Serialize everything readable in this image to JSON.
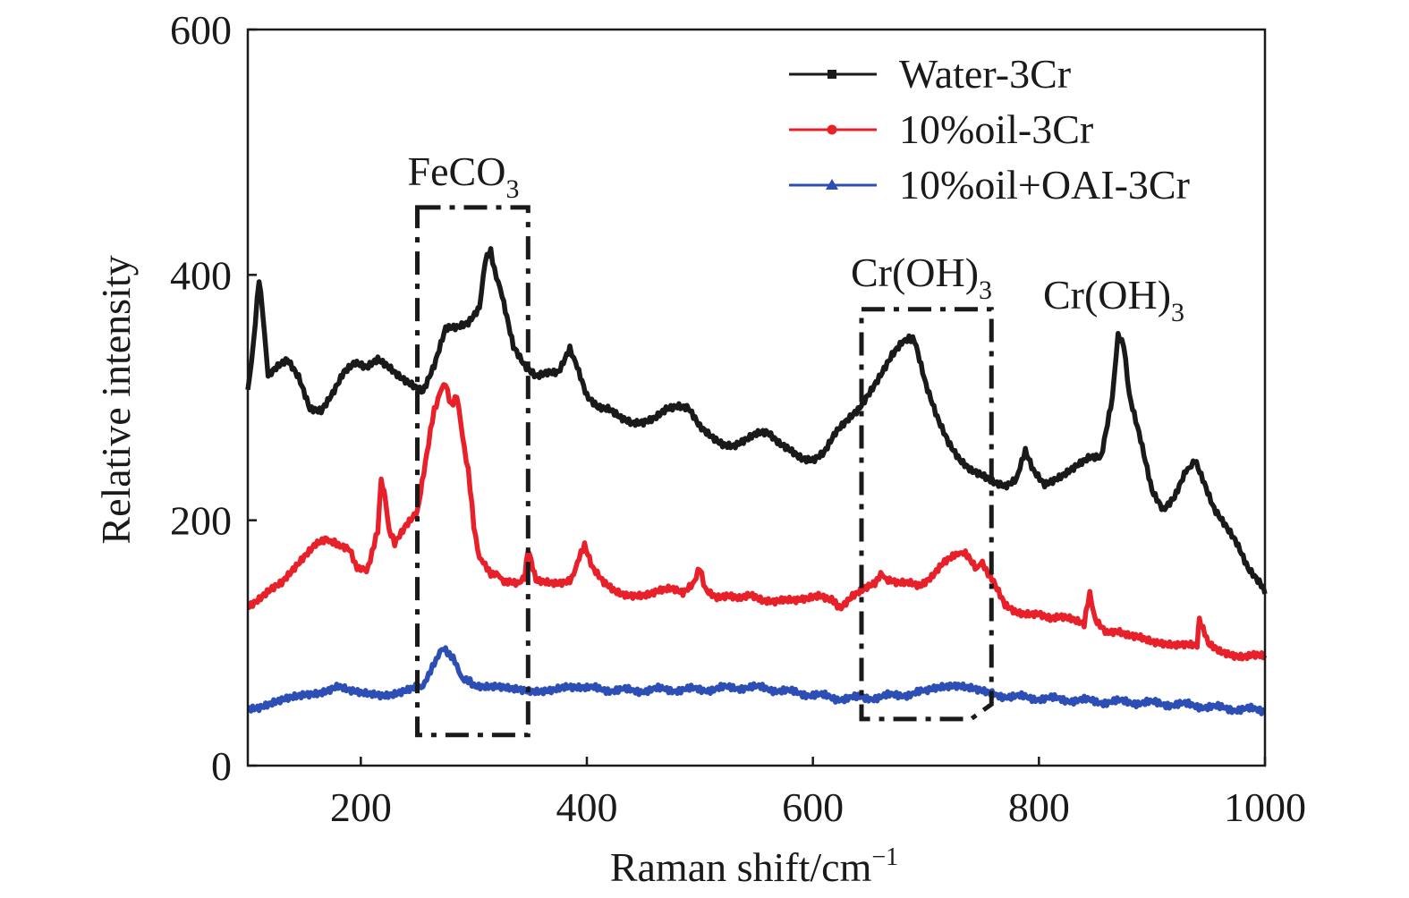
{
  "chart_data": {
    "type": "line",
    "xlabel": "Raman shift/cm",
    "xlabel_sup": "−1",
    "ylabel": "Relative intensity",
    "xlim": [
      100,
      1000
    ],
    "ylim": [
      0,
      600
    ],
    "xticks": [
      200,
      400,
      600,
      800,
      1000
    ],
    "yticks": [
      0,
      200,
      400,
      600
    ],
    "legend_position": "top-right",
    "series": [
      {
        "name": "Water-3Cr",
        "color": "#1a1a1a",
        "marker": "square",
        "x": [
          100,
          105,
          110,
          113,
          118,
          125,
          135,
          145,
          155,
          165,
          175,
          185,
          195,
          205,
          215,
          225,
          235,
          245,
          255,
          265,
          275,
          285,
          295,
          305,
          310,
          315,
          320,
          325,
          335,
          345,
          355,
          365,
          375,
          385,
          390,
          400,
          410,
          420,
          430,
          440,
          450,
          460,
          470,
          480,
          490,
          500,
          510,
          520,
          530,
          540,
          550,
          560,
          570,
          580,
          590,
          600,
          610,
          620,
          630,
          640,
          650,
          660,
          670,
          680,
          685,
          690,
          700,
          710,
          720,
          730,
          740,
          750,
          760,
          770,
          780,
          788,
          795,
          805,
          815,
          825,
          835,
          845,
          855,
          865,
          870,
          875,
          880,
          890,
          900,
          910,
          920,
          930,
          938,
          945,
          955,
          965,
          975,
          985,
          995,
          1000
        ],
        "y": [
          305,
          345,
          395,
          370,
          320,
          325,
          330,
          315,
          290,
          290,
          305,
          322,
          328,
          323,
          330,
          325,
          318,
          312,
          305,
          325,
          355,
          357,
          362,
          375,
          410,
          420,
          398,
          382,
          340,
          325,
          318,
          322,
          322,
          340,
          330,
          303,
          293,
          290,
          282,
          278,
          280,
          285,
          292,
          293,
          290,
          275,
          268,
          263,
          262,
          266,
          270,
          270,
          262,
          258,
          252,
          250,
          255,
          270,
          280,
          290,
          305,
          320,
          335,
          345,
          350,
          345,
          310,
          285,
          265,
          250,
          240,
          235,
          230,
          228,
          235,
          255,
          240,
          230,
          235,
          240,
          245,
          250,
          250,
          300,
          350,
          345,
          300,
          265,
          225,
          210,
          220,
          240,
          250,
          235,
          210,
          195,
          180,
          160,
          150,
          140
        ]
      },
      {
        "name": "10%oil-3Cr",
        "color": "#e8202a",
        "marker": "circle",
        "x": [
          100,
          110,
          120,
          130,
          140,
          150,
          160,
          170,
          175,
          180,
          190,
          195,
          200,
          205,
          210,
          215,
          218,
          222,
          225,
          230,
          240,
          250,
          260,
          265,
          270,
          275,
          280,
          285,
          290,
          295,
          300,
          305,
          310,
          315,
          320,
          325,
          330,
          340,
          345,
          348,
          355,
          365,
          375,
          385,
          390,
          398,
          405,
          415,
          425,
          435,
          445,
          455,
          465,
          475,
          485,
          495,
          500,
          505,
          515,
          525,
          535,
          545,
          555,
          565,
          575,
          585,
          595,
          605,
          615,
          620,
          625,
          635,
          645,
          655,
          660,
          665,
          675,
          685,
          695,
          705,
          715,
          725,
          730,
          735,
          745,
          750,
          755,
          760,
          770,
          780,
          790,
          800,
          810,
          820,
          830,
          840,
          845,
          850,
          860,
          870,
          880,
          890,
          900,
          910,
          920,
          930,
          940,
          942,
          950,
          960,
          970,
          980,
          990,
          1000
        ],
        "y": [
          130,
          135,
          142,
          148,
          160,
          172,
          182,
          185,
          183,
          178,
          175,
          165,
          160,
          158,
          175,
          190,
          232,
          215,
          190,
          182,
          195,
          205,
          262,
          290,
          305,
          310,
          295,
          300,
          270,
          240,
          195,
          170,
          162,
          158,
          155,
          152,
          150,
          150,
          152,
          175,
          150,
          150,
          150,
          152,
          160,
          180,
          160,
          148,
          142,
          140,
          140,
          140,
          142,
          143,
          140,
          150,
          160,
          145,
          138,
          138,
          135,
          138,
          135,
          135,
          137,
          135,
          135,
          137,
          135,
          132,
          130,
          140,
          145,
          148,
          158,
          150,
          148,
          150,
          148,
          155,
          165,
          170,
          175,
          172,
          160,
          165,
          158,
          148,
          130,
          125,
          125,
          125,
          120,
          120,
          118,
          115,
          140,
          120,
          110,
          110,
          105,
          103,
          100,
          100,
          100,
          100,
          98,
          120,
          98,
          92,
          90,
          90,
          92,
          90
        ]
      },
      {
        "name": "10%oil+OAI-3Cr",
        "color": "#2d4fb5",
        "marker": "triangle",
        "x": [
          100,
          110,
          120,
          130,
          140,
          150,
          160,
          170,
          180,
          190,
          200,
          210,
          220,
          230,
          240,
          250,
          255,
          260,
          265,
          270,
          275,
          280,
          285,
          290,
          295,
          300,
          310,
          320,
          330,
          340,
          350,
          360,
          370,
          380,
          390,
          400,
          420,
          440,
          460,
          480,
          500,
          520,
          540,
          560,
          580,
          600,
          620,
          640,
          660,
          680,
          700,
          710,
          720,
          730,
          740,
          750,
          760,
          780,
          800,
          820,
          840,
          860,
          880,
          900,
          920,
          940,
          960,
          980,
          1000
        ],
        "y": [
          48,
          48,
          50,
          52,
          55,
          58,
          60,
          62,
          65,
          60,
          58,
          58,
          58,
          60,
          62,
          64,
          66,
          72,
          85,
          92,
          95,
          90,
          80,
          72,
          68,
          66,
          64,
          63,
          62,
          62,
          62,
          62,
          62,
          63,
          62,
          63,
          62,
          61,
          62,
          62,
          62,
          63,
          64,
          63,
          60,
          58,
          55,
          55,
          56,
          58,
          60,
          62,
          64,
          66,
          65,
          62,
          58,
          56,
          55,
          54,
          53,
          52,
          52,
          51,
          50,
          49,
          47,
          46,
          45
        ]
      }
    ],
    "annotations": [
      {
        "text": "FeCO",
        "sub": "3"
      },
      {
        "text": "Cr(OH)",
        "sub": "3"
      },
      {
        "text": "Cr(OH)",
        "sub": "3"
      }
    ]
  }
}
